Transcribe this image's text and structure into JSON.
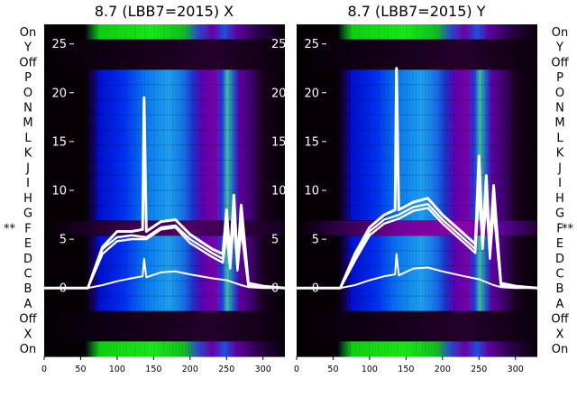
{
  "chart_data": [
    {
      "type": "heatmap",
      "title": "8.7 (LBB7=2015) X",
      "side_labels": [
        "On",
        "Y",
        "Off",
        "P",
        "O",
        "N",
        "M",
        "L",
        "K",
        "J",
        "I",
        "H",
        "G",
        "F",
        "E",
        "D",
        "C",
        "B",
        "A",
        "Off",
        "X",
        "On"
      ],
      "marked_label": "F",
      "marker": "**",
      "marker_side": "left",
      "xlim": [
        0,
        330
      ],
      "x_ticks": [
        0,
        50,
        100,
        150,
        200,
        250,
        300
      ],
      "ylim": [
        -7,
        27
      ],
      "y_ticks": [
        0,
        5,
        10,
        15,
        20,
        25
      ],
      "series": [
        {
          "x": [
            0,
            60,
            80,
            100,
            120,
            135,
            137,
            140,
            160,
            180,
            200,
            230,
            245,
            250,
            255,
            260,
            265,
            270,
            280,
            300,
            330
          ],
          "y": [
            0,
            0,
            4.2,
            5.8,
            5.8,
            6.0,
            19.5,
            5.8,
            6.8,
            7.0,
            5.5,
            4.0,
            3.5,
            8.0,
            3.0,
            9.5,
            2.5,
            8.5,
            0.5,
            0.2,
            0
          ]
        },
        {
          "x": [
            0,
            60,
            80,
            100,
            120,
            140,
            160,
            180,
            200,
            230,
            245,
            250,
            255,
            260,
            265,
            270,
            280,
            300,
            330
          ],
          "y": [
            0,
            0,
            4.0,
            5.2,
            5.4,
            5.2,
            6.2,
            6.4,
            5.0,
            3.6,
            3.0,
            6.5,
            2.5,
            8.0,
            2.0,
            7.0,
            0.3,
            0.1,
            0
          ]
        },
        {
          "x": [
            0,
            60,
            80,
            100,
            120,
            140,
            160,
            180,
            200,
            230,
            245,
            250,
            255,
            260,
            265,
            270,
            280,
            300,
            330
          ],
          "y": [
            0,
            0,
            3.5,
            4.8,
            5.0,
            5.0,
            6.0,
            6.2,
            4.6,
            3.2,
            2.6,
            5.5,
            2.0,
            7.0,
            1.8,
            6.0,
            0.2,
            0.1,
            0
          ]
        },
        {
          "x": [
            0,
            60,
            80,
            100,
            120,
            135,
            137,
            140,
            160,
            180,
            200,
            230,
            250,
            270,
            280,
            300,
            330
          ],
          "y": [
            0,
            0,
            0.3,
            0.7,
            1.0,
            1.2,
            3.0,
            1.1,
            1.6,
            1.7,
            1.4,
            1.0,
            0.8,
            0.3,
            0.1,
            0,
            0
          ]
        }
      ]
    },
    {
      "type": "heatmap",
      "title": "8.7 (LBB7=2015) Y",
      "side_labels": [
        "On",
        "Y",
        "Off",
        "P",
        "O",
        "N",
        "M",
        "L",
        "K",
        "J",
        "I",
        "H",
        "G",
        "F",
        "E",
        "D",
        "C",
        "B",
        "A",
        "Off",
        "X",
        "On"
      ],
      "marked_label": "F",
      "marker": "**",
      "marker_side": "right",
      "xlim": [
        0,
        330
      ],
      "x_ticks": [
        0,
        50,
        100,
        150,
        200,
        250,
        300
      ],
      "ylim": [
        -7,
        27
      ],
      "y_ticks": [
        0,
        5,
        10,
        15,
        20,
        25
      ],
      "series": [
        {
          "x": [
            0,
            60,
            80,
            100,
            120,
            135,
            137,
            140,
            160,
            180,
            200,
            230,
            245,
            250,
            255,
            260,
            265,
            270,
            280,
            300,
            330
          ],
          "y": [
            0,
            0,
            3.5,
            6.2,
            7.5,
            8.0,
            22.5,
            8.0,
            8.8,
            9.2,
            7.5,
            5.5,
            4.5,
            13.5,
            5.0,
            11.5,
            4.0,
            10.5,
            0.5,
            0.2,
            0
          ]
        },
        {
          "x": [
            0,
            60,
            80,
            100,
            120,
            140,
            160,
            180,
            200,
            230,
            245,
            250,
            255,
            260,
            265,
            270,
            280,
            300,
            330
          ],
          "y": [
            0,
            0,
            3.0,
            5.8,
            7.0,
            7.5,
            8.3,
            8.6,
            7.0,
            5.0,
            4.0,
            11.0,
            4.5,
            10.0,
            3.5,
            9.0,
            0.4,
            0.1,
            0
          ]
        },
        {
          "x": [
            0,
            60,
            80,
            100,
            120,
            140,
            160,
            180,
            200,
            230,
            245,
            250,
            255,
            260,
            265,
            270,
            280,
            300,
            330
          ],
          "y": [
            0,
            0,
            2.8,
            5.4,
            6.6,
            7.1,
            7.9,
            8.2,
            6.6,
            4.6,
            3.6,
            10.0,
            4.0,
            9.0,
            3.0,
            8.0,
            0.3,
            0.1,
            0
          ]
        },
        {
          "x": [
            0,
            60,
            80,
            100,
            120,
            135,
            137,
            140,
            160,
            180,
            200,
            230,
            250,
            270,
            280,
            300,
            330
          ],
          "y": [
            0,
            0,
            0.3,
            0.8,
            1.2,
            1.4,
            3.5,
            1.3,
            2.0,
            2.1,
            1.7,
            1.2,
            0.9,
            0.3,
            0.1,
            0,
            0
          ]
        }
      ]
    }
  ]
}
